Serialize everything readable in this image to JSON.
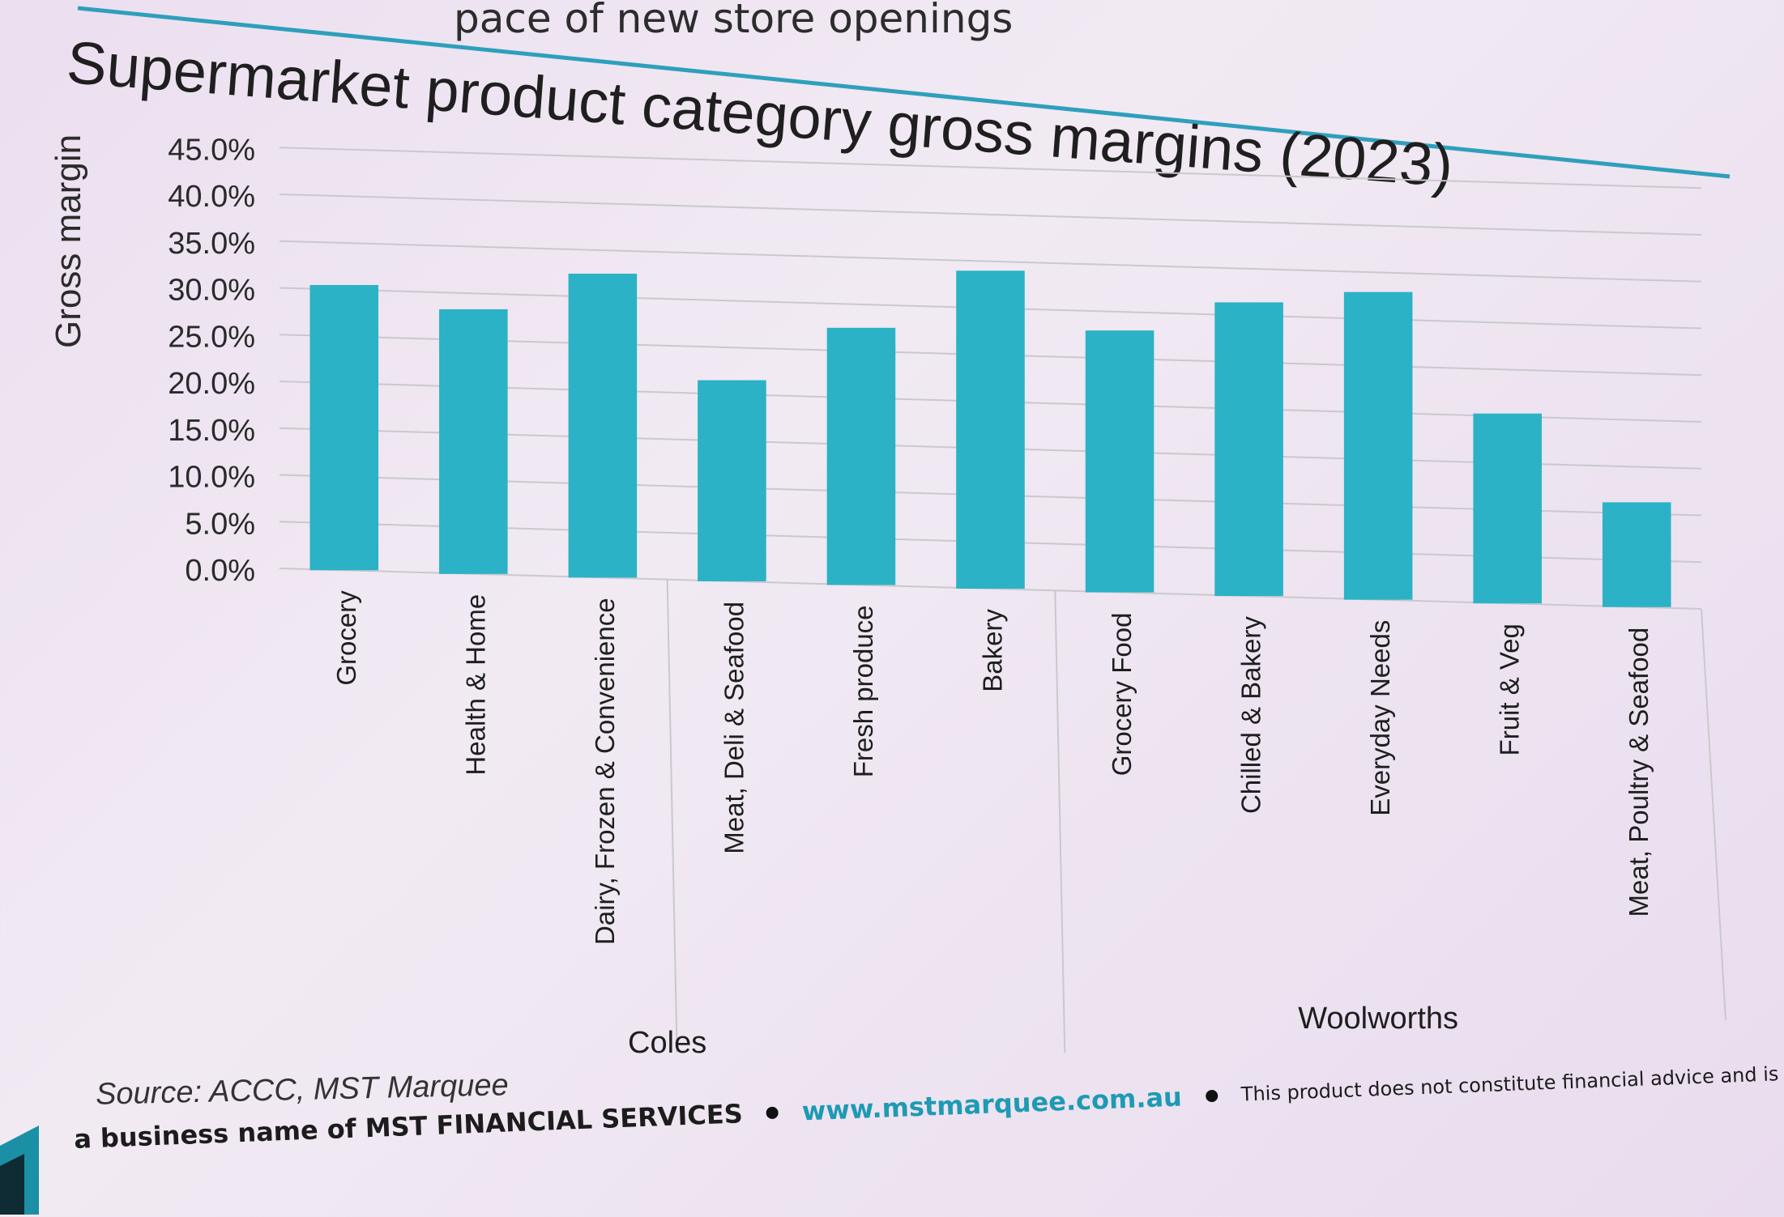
{
  "slide": {
    "header_text": "pace of new store openings",
    "title": "Supermarket product category gross margins (2023)",
    "source": "Source: ACCC, MST Marquee",
    "footer": {
      "business_name": "a business name of MST FINANCIAL SERVICES",
      "url": "www.mstmarquee.com.au",
      "disclaimer": "This product does not constitute financial advice and is provided for information purposes only."
    },
    "colors": {
      "bar": "#2bb2c6",
      "accent_line": "#2e9fbc",
      "gridline": "#c9c9cc"
    }
  },
  "chart_data": {
    "type": "bar",
    "title": "Supermarket product category gross margins (2023)",
    "xlabel": "",
    "ylabel": "Gross margin",
    "ylim": [
      0,
      45
    ],
    "yticks": [
      "0.0%",
      "5.0%",
      "10.0%",
      "15.0%",
      "20.0%",
      "25.0%",
      "30.0%",
      "35.0%",
      "40.0%",
      "45.0%"
    ],
    "grid": true,
    "legend": "none",
    "groups": [
      {
        "name": "Coles",
        "categories": [
          "Grocery",
          "Health & Home",
          "Dairy, Frozen & Convenience",
          "Meat, Deli & Seafood",
          "Fresh produce",
          "Bakery"
        ]
      },
      {
        "name": "Woolworths",
        "categories": [
          "Grocery Food",
          "Chilled & Bakery",
          "Everyday Needs",
          "Fruit & Veg",
          "Meat, Poultry & Seafood"
        ]
      }
    ],
    "categories": [
      "Grocery",
      "Health & Home",
      "Dairy, Frozen & Convenience",
      "Meat, Deli & Seafood",
      "Fresh produce",
      "Bakery",
      "Grocery Food",
      "Chilled & Bakery",
      "Everyday Needs",
      "Fruit & Veg",
      "Meat, Poultry & Seafood"
    ],
    "values": [
      30.5,
      28.3,
      32.5,
      21.5,
      27.5,
      34.0,
      28.0,
      31.4,
      32.9,
      20.3,
      11.2
    ]
  }
}
